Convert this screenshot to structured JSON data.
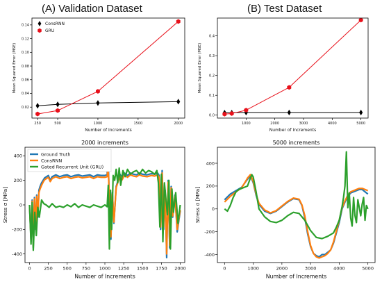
{
  "figure": {
    "title_a": "(A) Validation Dataset",
    "title_b": "(B) Test Dataset"
  },
  "chart_data": [
    {
      "type": "line",
      "xlabel": "Number of Increments",
      "ylabel": "Mean Squared Error (MSE)",
      "xlim": [
        180,
        2080
      ],
      "ylim": [
        0.004,
        0.15
      ],
      "xticks": [
        250,
        500,
        1000,
        1500,
        2000
      ],
      "yticks": [
        0.02,
        0.04,
        0.06,
        0.08,
        0.1,
        0.12,
        0.14
      ],
      "ytick_labels": [
        "0.02",
        "0.04",
        "0.06",
        "0.08",
        "0.10",
        "0.12",
        "0.14"
      ],
      "legend": "top-left",
      "x": [
        250,
        500,
        1000,
        2000
      ],
      "series": [
        {
          "name": "ConsRNN",
          "color": "#000000",
          "marker": "diamond",
          "values": [
            0.022,
            0.024,
            0.026,
            0.028
          ]
        },
        {
          "name": "GRU",
          "color": "#e8101a",
          "marker": "hexagon",
          "values": [
            0.01,
            0.015,
            0.043,
            0.145
          ]
        }
      ]
    },
    {
      "type": "line",
      "xlabel": "Number of Increments",
      "ylabel": "Mean Squared Error (MSE)",
      "xlim": [
        0,
        5250
      ],
      "ylim": [
        -0.015,
        0.49
      ],
      "xticks": [
        1000,
        2000,
        3000,
        4000,
        5000
      ],
      "yticks": [
        0.0,
        0.1,
        0.2,
        0.3,
        0.4
      ],
      "ytick_labels": [
        "0.0",
        "0.1",
        "0.2",
        "0.3",
        "0.4"
      ],
      "x": [
        250,
        500,
        1000,
        2500,
        5000
      ],
      "series": [
        {
          "name": "ConsRNN",
          "color": "#000000",
          "marker": "diamond",
          "values": [
            0.012,
            0.012,
            0.013,
            0.013,
            0.013
          ]
        },
        {
          "name": "GRU",
          "color": "#e8101a",
          "marker": "hexagon",
          "values": [
            0.005,
            0.008,
            0.025,
            0.14,
            0.48
          ]
        }
      ]
    },
    {
      "type": "line",
      "title": "2000 increments",
      "xlabel": "Number of Increments",
      "ylabel": "Stress σ [MPa]",
      "xlim": [
        -60,
        2060
      ],
      "ylim": [
        -470,
        470
      ],
      "xticks": [
        0,
        250,
        500,
        750,
        1000,
        1250,
        1500,
        1750,
        2000
      ],
      "yticks": [
        -400,
        -200,
        0,
        200,
        400
      ],
      "legend": "top-left",
      "series": [
        {
          "name": "Ground Truth",
          "color": "#1f77b4",
          "x": [
            0,
            20,
            35,
            50,
            65,
            80,
            95,
            110,
            125,
            140,
            160,
            180,
            200,
            225,
            250,
            275,
            300,
            350,
            400,
            450,
            500,
            550,
            600,
            650,
            700,
            750,
            800,
            850,
            900,
            950,
            1000,
            1030,
            1040,
            1050,
            1060,
            1080,
            1100,
            1120,
            1150,
            1180,
            1200,
            1230,
            1260,
            1300,
            1340,
            1380,
            1420,
            1460,
            1500,
            1560,
            1620,
            1660,
            1700,
            1720,
            1740,
            1760,
            1780,
            1800,
            1820,
            1840,
            1860,
            1880,
            1900,
            1930,
            1960,
            2000
          ],
          "y": [
            0,
            -300,
            40,
            -350,
            60,
            -200,
            80,
            -100,
            120,
            150,
            180,
            200,
            220,
            230,
            240,
            200,
            230,
            245,
            230,
            240,
            245,
            230,
            240,
            245,
            235,
            240,
            245,
            230,
            245,
            240,
            240,
            245,
            440,
            240,
            0,
            -280,
            100,
            -150,
            150,
            210,
            250,
            220,
            260,
            240,
            260,
            250,
            245,
            260,
            250,
            245,
            255,
            250,
            260,
            240,
            -200,
            280,
            -200,
            120,
            -430,
            200,
            -350,
            150,
            -100,
            80,
            -220,
            -50
          ]
        },
        {
          "name": "ConsRNN",
          "color": "#ff7f0e",
          "x": [
            0,
            20,
            35,
            50,
            65,
            80,
            95,
            110,
            125,
            140,
            160,
            180,
            200,
            225,
            250,
            275,
            300,
            350,
            400,
            450,
            500,
            550,
            600,
            650,
            700,
            750,
            800,
            850,
            900,
            950,
            1000,
            1030,
            1040,
            1050,
            1060,
            1080,
            1100,
            1120,
            1150,
            1180,
            1200,
            1230,
            1260,
            1300,
            1340,
            1380,
            1420,
            1460,
            1500,
            1560,
            1620,
            1660,
            1700,
            1720,
            1740,
            1760,
            1780,
            1800,
            1820,
            1840,
            1860,
            1880,
            1900,
            1930,
            1960,
            2000
          ],
          "y": [
            0,
            -290,
            30,
            -340,
            50,
            -190,
            70,
            -90,
            100,
            130,
            160,
            185,
            205,
            215,
            225,
            190,
            215,
            230,
            215,
            225,
            230,
            215,
            225,
            230,
            220,
            225,
            230,
            215,
            230,
            225,
            225,
            230,
            300,
            225,
            10,
            -260,
            90,
            -140,
            140,
            200,
            235,
            205,
            245,
            225,
            245,
            235,
            230,
            245,
            235,
            230,
            240,
            235,
            245,
            225,
            -180,
            260,
            -180,
            110,
            -400,
            185,
            -330,
            140,
            -90,
            70,
            -200,
            -40
          ]
        },
        {
          "name": "Gated Recurrent Unit (GRU)",
          "color": "#2ca02c",
          "x": [
            0,
            20,
            35,
            50,
            70,
            90,
            110,
            130,
            160,
            190,
            220,
            260,
            300,
            350,
            400,
            450,
            500,
            550,
            600,
            650,
            700,
            750,
            800,
            850,
            900,
            950,
            1000,
            1030,
            1045,
            1060,
            1075,
            1090,
            1110,
            1130,
            1150,
            1170,
            1190,
            1210,
            1240,
            1270,
            1300,
            1340,
            1380,
            1420,
            1460,
            1500,
            1540,
            1580,
            1620,
            1660,
            1690,
            1710,
            1730,
            1750,
            1770,
            1790,
            1810,
            1830,
            1850,
            1870,
            1890,
            1910,
            1940,
            1970,
            2000
          ],
          "y": [
            0,
            -320,
            20,
            -370,
            -60,
            -250,
            -20,
            -100,
            40,
            10,
            0,
            -20,
            10,
            -20,
            -10,
            -20,
            0,
            -15,
            10,
            -20,
            0,
            -10,
            -20,
            0,
            -10,
            -20,
            0,
            -15,
            160,
            -360,
            120,
            -200,
            240,
            200,
            290,
            180,
            300,
            160,
            280,
            230,
            290,
            250,
            270,
            280,
            250,
            290,
            260,
            280,
            270,
            250,
            280,
            180,
            -180,
            250,
            -300,
            180,
            50,
            -80,
            200,
            -360,
            130,
            -60,
            100,
            -150,
            0
          ]
        }
      ]
    },
    {
      "type": "line",
      "title": "5000 increments",
      "xlabel": "Number of Increments",
      "ylabel": "Stress σ [MPa]",
      "xlim": [
        -250,
        5250
      ],
      "ylim": [
        -470,
        540
      ],
      "xticks": [
        0,
        1000,
        2000,
        3000,
        4000,
        5000
      ],
      "yticks": [
        -400,
        -200,
        0,
        200,
        400
      ],
      "series": [
        {
          "name": "Ground Truth",
          "color": "#1f77b4",
          "x": [
            0,
            200,
            400,
            600,
            800,
            900,
            1000,
            1100,
            1200,
            1400,
            1600,
            1800,
            2000,
            2200,
            2400,
            2600,
            2700,
            2800,
            2900,
            3000,
            3100,
            3200,
            3300,
            3400,
            3500,
            3600,
            3700,
            3800,
            4000,
            4100,
            4200,
            4300,
            4400,
            4500,
            4600,
            4700,
            4800,
            4900,
            5000
          ],
          "y": [
            80,
            130,
            160,
            190,
            260,
            290,
            230,
            120,
            40,
            -20,
            -40,
            -20,
            20,
            60,
            90,
            80,
            30,
            -80,
            -220,
            -330,
            -390,
            -410,
            -420,
            -400,
            -400,
            -380,
            -360,
            -300,
            -120,
            0,
            60,
            110,
            140,
            150,
            160,
            170,
            170,
            150,
            130
          ]
        },
        {
          "name": "ConsRNN",
          "color": "#ff7f0e",
          "x": [
            0,
            200,
            400,
            600,
            800,
            900,
            1000,
            1100,
            1200,
            1400,
            1600,
            1800,
            2000,
            2200,
            2400,
            2600,
            2700,
            2800,
            2900,
            3000,
            3100,
            3200,
            3300,
            3400,
            3500,
            3600,
            3700,
            3800,
            4000,
            4100,
            4200,
            4300,
            4400,
            4500,
            4600,
            4700,
            4800,
            4900,
            5000
          ],
          "y": [
            60,
            110,
            150,
            185,
            270,
            300,
            240,
            130,
            50,
            -10,
            -35,
            -15,
            25,
            65,
            95,
            85,
            35,
            -60,
            -200,
            -320,
            -390,
            -420,
            -430,
            -420,
            -410,
            -390,
            -360,
            -290,
            -100,
            10,
            70,
            120,
            150,
            160,
            170,
            180,
            180,
            170,
            160
          ]
        },
        {
          "name": "Gated Recurrent Unit (GRU)",
          "color": "#2ca02c",
          "x": [
            0,
            100,
            200,
            300,
            400,
            500,
            600,
            700,
            800,
            900,
            950,
            1000,
            1100,
            1200,
            1400,
            1600,
            1800,
            2000,
            2200,
            2400,
            2600,
            2800,
            3000,
            3200,
            3400,
            3600,
            3800,
            3900,
            4000,
            4050,
            4100,
            4150,
            4200,
            4250,
            4300,
            4350,
            4400,
            4450,
            4500,
            4550,
            4600,
            4650,
            4700,
            4750,
            4800,
            4850,
            4900,
            4950,
            5000
          ],
          "y": [
            0,
            -20,
            30,
            100,
            150,
            170,
            180,
            190,
            200,
            270,
            300,
            280,
            150,
            0,
            -70,
            -110,
            -120,
            -100,
            -60,
            -30,
            -40,
            -100,
            -190,
            -250,
            -260,
            -240,
            -210,
            -160,
            -100,
            -40,
            20,
            100,
            200,
            500,
            10,
            140,
            -80,
            -150,
            100,
            -60,
            -120,
            80,
            10,
            -60,
            40,
            100,
            -100,
            30,
            0
          ]
        }
      ]
    }
  ]
}
